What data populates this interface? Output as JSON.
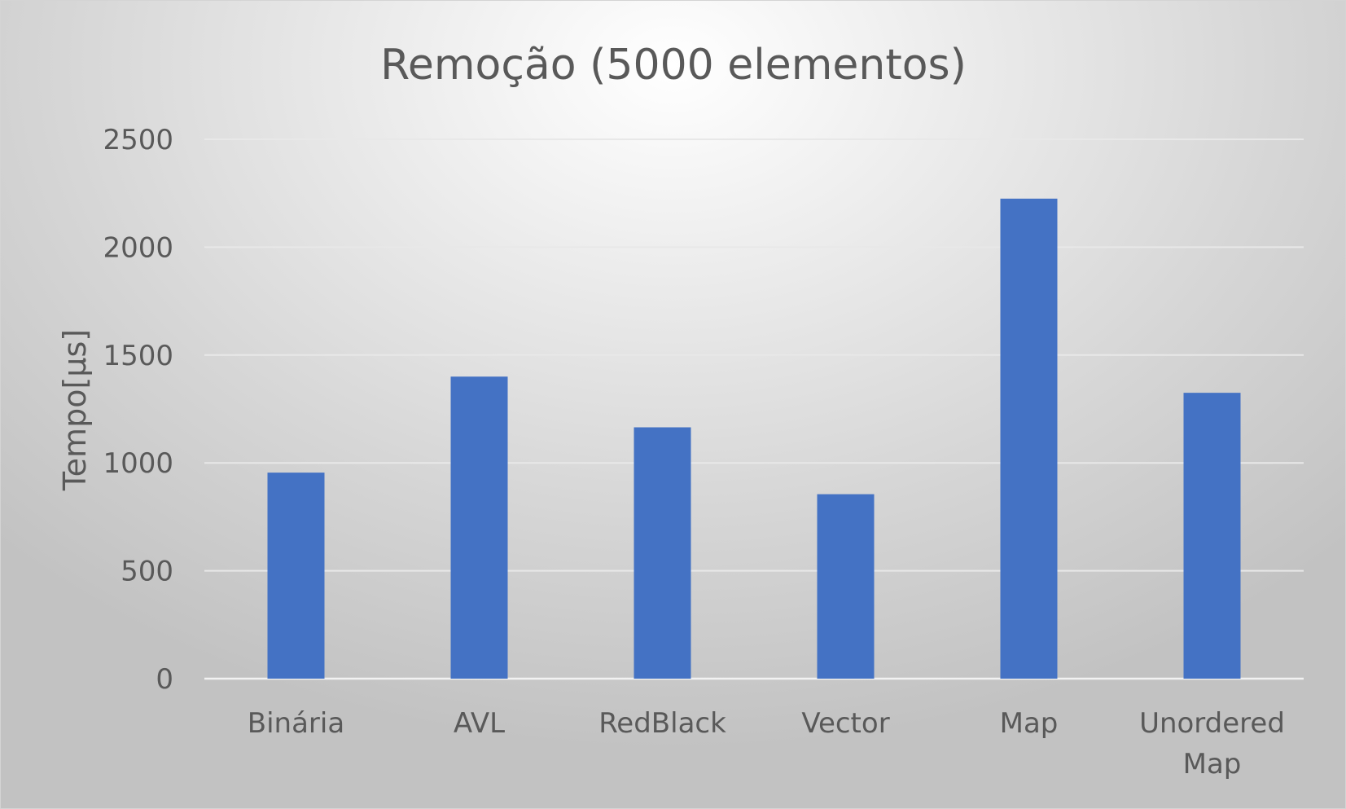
{
  "chart_data": {
    "type": "bar",
    "title": "Remoção (5000 elementos)",
    "xlabel": "",
    "ylabel": "Tempo[µs]",
    "categories": [
      [
        "Binária"
      ],
      [
        "AVL"
      ],
      [
        "RedBlack"
      ],
      [
        "Vector"
      ],
      [
        "Map"
      ],
      [
        "Unordered",
        "Map"
      ]
    ],
    "values": [
      955,
      1400,
      1165,
      855,
      2225,
      1325
    ],
    "ylim": [
      0,
      2500
    ],
    "yticks": [
      0,
      500,
      1000,
      1500,
      2000,
      2500
    ],
    "grid": true,
    "legend": "none",
    "colors": {
      "bar": "#4472C4"
    }
  }
}
